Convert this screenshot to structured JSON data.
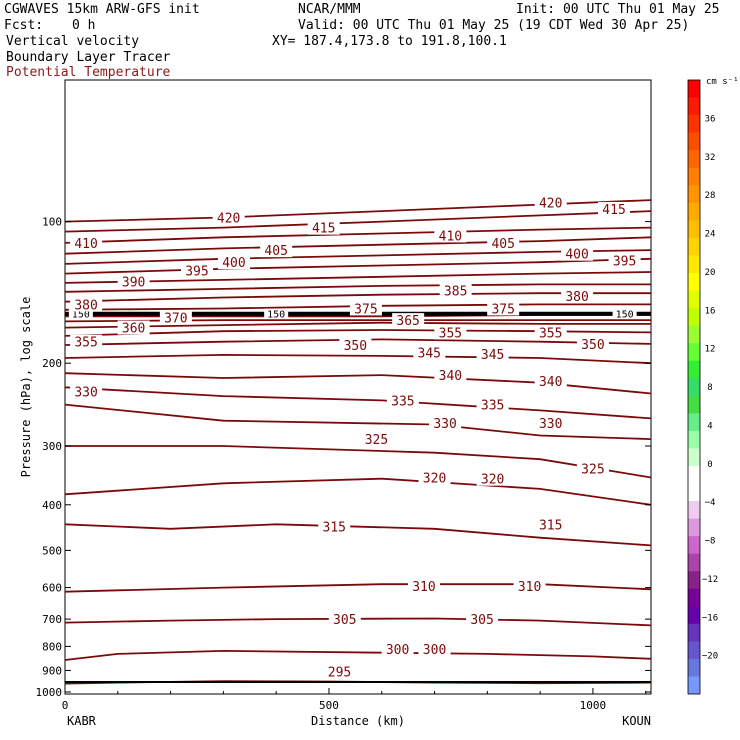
{
  "header": {
    "model": "CGWAVES 15km ARW-GFS init",
    "org": "NCAR/MMM",
    "init": "Init: 00 UTC Thu 01 May 25",
    "fcst_label": "Fcst:",
    "fcst_value": "0 h",
    "valid": "Valid: 00 UTC Thu 01 May 25 (19 CDT Wed 30 Apr 25)",
    "field1": "Vertical velocity",
    "xy": "XY= 187.4,173.8 to 191.8,100.1",
    "field2": "Boundary Layer Tracer",
    "field3": "Potential Temperature"
  },
  "chart_data": {
    "type": "line",
    "xlabel": "Distance (km)",
    "ylabel": "Pressure (hPa), log scale",
    "xlim": [
      0,
      1110
    ],
    "ylim": [
      1010,
      50
    ],
    "x_ticks": [
      "0",
      "500",
      "1000"
    ],
    "y_ticks": [
      "100",
      "200",
      "300",
      "400",
      "500",
      "600",
      "700",
      "800",
      "900",
      "1000"
    ],
    "endpoints": {
      "left": "KABR",
      "right": "KOUN"
    },
    "contour_interval": 5,
    "contour_color": "#7a0a0a",
    "series": [
      {
        "name": "295",
        "values": [
          [
            0,
            960
          ],
          [
            100,
            955
          ],
          [
            300,
            948
          ],
          [
            500,
            950
          ],
          [
            700,
            955
          ],
          [
            900,
            958
          ],
          [
            1110,
            955
          ]
        ]
      },
      {
        "name": "300",
        "values": [
          [
            0,
            855
          ],
          [
            100,
            830
          ],
          [
            300,
            818
          ],
          [
            600,
            825
          ],
          [
            800,
            830
          ],
          [
            1000,
            840
          ],
          [
            1110,
            850
          ]
        ]
      },
      {
        "name": "305",
        "values": [
          [
            0,
            712
          ],
          [
            200,
            705
          ],
          [
            400,
            700
          ],
          [
            700,
            698
          ],
          [
            900,
            705
          ],
          [
            1110,
            722
          ]
        ]
      },
      {
        "name": "310",
        "values": [
          [
            0,
            612
          ],
          [
            300,
            600
          ],
          [
            600,
            590
          ],
          [
            900,
            590
          ],
          [
            1110,
            605
          ]
        ]
      },
      {
        "name": "315",
        "values": [
          [
            0,
            440
          ],
          [
            200,
            450
          ],
          [
            400,
            440
          ],
          [
            700,
            450
          ],
          [
            900,
            470
          ],
          [
            1110,
            488
          ]
        ]
      },
      {
        "name": "320",
        "values": [
          [
            0,
            380
          ],
          [
            300,
            360
          ],
          [
            600,
            352
          ],
          [
            900,
            370
          ],
          [
            1110,
            400
          ]
        ]
      },
      {
        "name": "325",
        "values": [
          [
            0,
            300
          ],
          [
            300,
            300
          ],
          [
            700,
            310
          ],
          [
            900,
            320
          ],
          [
            1110,
            350
          ]
        ]
      },
      {
        "name": "330",
        "values": [
          [
            0,
            245
          ],
          [
            300,
            265
          ],
          [
            700,
            270
          ],
          [
            900,
            285
          ],
          [
            1110,
            290
          ]
        ]
      },
      {
        "name": "335",
        "values": [
          [
            0,
            225
          ],
          [
            300,
            235
          ],
          [
            600,
            240
          ],
          [
            900,
            252
          ],
          [
            1110,
            262
          ]
        ]
      },
      {
        "name": "340",
        "values": [
          [
            0,
            210
          ],
          [
            300,
            215
          ],
          [
            600,
            212
          ],
          [
            900,
            220
          ],
          [
            1110,
            232
          ]
        ]
      },
      {
        "name": "345",
        "values": [
          [
            0,
            195
          ],
          [
            300,
            192
          ],
          [
            600,
            193
          ],
          [
            900,
            195
          ],
          [
            1110,
            200
          ]
        ]
      },
      {
        "name": "350",
        "values": [
          [
            0,
            183
          ],
          [
            300,
            180
          ],
          [
            600,
            178
          ],
          [
            900,
            180
          ],
          [
            1110,
            182
          ]
        ]
      },
      {
        "name": "355",
        "values": [
          [
            0,
            175
          ],
          [
            300,
            171
          ],
          [
            600,
            170
          ],
          [
            900,
            171
          ],
          [
            1110,
            172
          ]
        ]
      },
      {
        "name": "360",
        "values": [
          [
            0,
            168
          ],
          [
            300,
            166
          ],
          [
            600,
            164
          ],
          [
            900,
            165
          ],
          [
            1110,
            165
          ]
        ]
      },
      {
        "name": "365",
        "values": [
          [
            0,
            163
          ],
          [
            300,
            162
          ],
          [
            600,
            162
          ],
          [
            900,
            162
          ],
          [
            1110,
            162
          ]
        ]
      },
      {
        "name": "370",
        "values": [
          [
            0,
            159
          ],
          [
            300,
            159
          ],
          [
            600,
            159
          ],
          [
            900,
            158
          ],
          [
            1110,
            158
          ]
        ]
      },
      {
        "name": "375",
        "values": [
          [
            0,
            154
          ],
          [
            300,
            153
          ],
          [
            600,
            151
          ],
          [
            900,
            150
          ],
          [
            1110,
            150
          ]
        ]
      },
      {
        "name": "380",
        "values": [
          [
            0,
            148
          ],
          [
            300,
            145
          ],
          [
            600,
            143
          ],
          [
            900,
            142
          ],
          [
            1110,
            142
          ]
        ]
      },
      {
        "name": "385",
        "values": [
          [
            0,
            141
          ],
          [
            300,
            139
          ],
          [
            600,
            137
          ],
          [
            900,
            136
          ],
          [
            1110,
            136
          ]
        ]
      },
      {
        "name": "390",
        "values": [
          [
            0,
            135
          ],
          [
            300,
            133
          ],
          [
            600,
            131
          ],
          [
            900,
            129
          ],
          [
            1110,
            128
          ]
        ]
      },
      {
        "name": "395",
        "values": [
          [
            0,
            129
          ],
          [
            300,
            126
          ],
          [
            600,
            124
          ],
          [
            900,
            122
          ],
          [
            1110,
            120
          ]
        ]
      },
      {
        "name": "400",
        "values": [
          [
            0,
            123
          ],
          [
            300,
            120
          ],
          [
            600,
            118
          ],
          [
            900,
            116
          ],
          [
            1110,
            115
          ]
        ]
      },
      {
        "name": "405",
        "values": [
          [
            0,
            117
          ],
          [
            300,
            114
          ],
          [
            600,
            112
          ],
          [
            900,
            110
          ],
          [
            1110,
            108
          ]
        ]
      },
      {
        "name": "410",
        "values": [
          [
            0,
            111
          ],
          [
            300,
            108
          ],
          [
            600,
            106
          ],
          [
            900,
            104
          ],
          [
            1110,
            103
          ]
        ]
      },
      {
        "name": "415",
        "values": [
          [
            0,
            105
          ],
          [
            300,
            103
          ],
          [
            600,
            100
          ],
          [
            900,
            97
          ],
          [
            1110,
            95
          ]
        ]
      },
      {
        "name": "420",
        "values": [
          [
            0,
            100
          ],
          [
            300,
            98
          ],
          [
            600,
            95
          ],
          [
            900,
            92
          ],
          [
            1110,
            90
          ]
        ]
      }
    ],
    "labels": [
      {
        "text": "295",
        "x": 520,
        "p": 905
      },
      {
        "text": "300",
        "x": 630,
        "p": 810
      },
      {
        "text": "300",
        "x": 700,
        "p": 810
      },
      {
        "text": "305",
        "x": 530,
        "p": 700
      },
      {
        "text": "305",
        "x": 790,
        "p": 700
      },
      {
        "text": "310",
        "x": 680,
        "p": 595
      },
      {
        "text": "310",
        "x": 880,
        "p": 595
      },
      {
        "text": "315",
        "x": 510,
        "p": 445
      },
      {
        "text": "315",
        "x": 920,
        "p": 440
      },
      {
        "text": "320",
        "x": 700,
        "p": 350
      },
      {
        "text": "320",
        "x": 810,
        "p": 352
      },
      {
        "text": "325",
        "x": 590,
        "p": 290
      },
      {
        "text": "325",
        "x": 1000,
        "p": 335
      },
      {
        "text": "330",
        "x": 40,
        "p": 230
      },
      {
        "text": "330",
        "x": 720,
        "p": 268
      },
      {
        "text": "330",
        "x": 920,
        "p": 268
      },
      {
        "text": "335",
        "x": 640,
        "p": 240
      },
      {
        "text": "335",
        "x": 810,
        "p": 245
      },
      {
        "text": "340",
        "x": 730,
        "p": 212
      },
      {
        "text": "340",
        "x": 920,
        "p": 218
      },
      {
        "text": "345",
        "x": 690,
        "p": 190
      },
      {
        "text": "345",
        "x": 810,
        "p": 191
      },
      {
        "text": "350",
        "x": 550,
        "p": 183
      },
      {
        "text": "350",
        "x": 1000,
        "p": 182
      },
      {
        "text": "355",
        "x": 40,
        "p": 180
      },
      {
        "text": "355",
        "x": 730,
        "p": 172
      },
      {
        "text": "355",
        "x": 920,
        "p": 172
      },
      {
        "text": "360",
        "x": 130,
        "p": 168
      },
      {
        "text": "365",
        "x": 650,
        "p": 162
      },
      {
        "text": "370",
        "x": 210,
        "p": 160
      },
      {
        "text": "375",
        "x": 570,
        "p": 153
      },
      {
        "text": "375",
        "x": 830,
        "p": 153
      },
      {
        "text": "380",
        "x": 40,
        "p": 150
      },
      {
        "text": "380",
        "x": 970,
        "p": 144
      },
      {
        "text": "385",
        "x": 740,
        "p": 140
      },
      {
        "text": "390",
        "x": 130,
        "p": 134
      },
      {
        "text": "395",
        "x": 250,
        "p": 127
      },
      {
        "text": "395",
        "x": 1060,
        "p": 121
      },
      {
        "text": "400",
        "x": 320,
        "p": 122
      },
      {
        "text": "400",
        "x": 970,
        "p": 117
      },
      {
        "text": "405",
        "x": 400,
        "p": 115
      },
      {
        "text": "405",
        "x": 830,
        "p": 111
      },
      {
        "text": "410",
        "x": 40,
        "p": 111
      },
      {
        "text": "410",
        "x": 730,
        "p": 107
      },
      {
        "text": "415",
        "x": 490,
        "p": 103
      },
      {
        "text": "415",
        "x": 1040,
        "p": 94
      },
      {
        "text": "420",
        "x": 310,
        "p": 98
      },
      {
        "text": "420",
        "x": 920,
        "p": 91
      }
    ],
    "tropopause_line": {
      "values": [
        [
          0,
          157
        ],
        [
          1110,
          157
        ]
      ],
      "labels": [
        {
          "text": "150",
          "x": 30
        },
        {
          "text": "150",
          "x": 400
        },
        {
          "text": "150",
          "x": 1060
        }
      ]
    },
    "colorbar": {
      "unit": "cm s⁻¹",
      "tick_labels": [
        "36",
        "32",
        "28",
        "24",
        "20",
        "16",
        "12",
        "8",
        "4",
        "0",
        "−4",
        "−8",
        "−12",
        "−16",
        "−20"
      ],
      "colors": [
        "#ff0000",
        "#ff1a00",
        "#ff3300",
        "#ff4d00",
        "#ff6600",
        "#ff7f00",
        "#ff9400",
        "#ffaa00",
        "#ffbf00",
        "#ffd400",
        "#ffe800",
        "#ffff00",
        "#e0ff00",
        "#c0ff00",
        "#99ff33",
        "#66ff33",
        "#33ee33",
        "#33dd66",
        "#44dd44",
        "#66ee88",
        "#99ffaa",
        "#ccffcc",
        "#ffffff",
        "#ffffff",
        "#eeccee",
        "#dd99dd",
        "#cc66cc",
        "#aa44aa",
        "#882288",
        "#770099",
        "#6600aa",
        "#6633bb",
        "#6655cc",
        "#6677dd",
        "#7799ff"
      ]
    }
  }
}
